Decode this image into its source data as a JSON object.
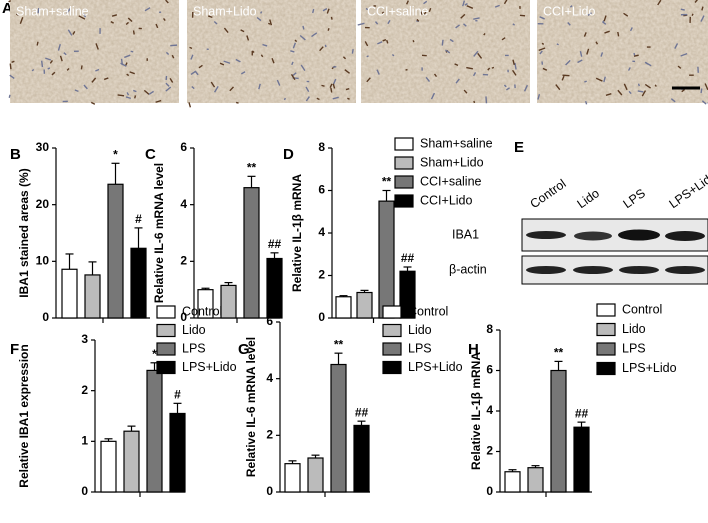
{
  "micrographs": {
    "letter": "A",
    "labels": [
      "Sham+saline",
      "Sham+Lido",
      "CCI+saline",
      "CCI+Lido"
    ]
  },
  "blot": {
    "letter": "E",
    "lanes": [
      "Control",
      "Lido",
      "LPS",
      "LPS+Lido"
    ],
    "rows": [
      "IBA1",
      "β-actin"
    ]
  },
  "chart_data": [
    {
      "type": "bar",
      "panel": "B",
      "y_label": "IBA1 stained areas (%)",
      "categories": [
        null
      ],
      "ylim": [
        0,
        30
      ],
      "yticks": [
        0,
        10,
        20,
        30
      ],
      "series": [
        {
          "color": "#ffffff",
          "values": [
            8.6
          ],
          "errors": [
            2.7
          ]
        },
        {
          "color": "#bbbbbb",
          "values": [
            7.6
          ],
          "errors": [
            2.3
          ]
        },
        {
          "color": "#777777",
          "values": [
            23.6
          ],
          "errors": [
            3.7
          ],
          "annotation": "*"
        },
        {
          "color": "#000000",
          "values": [
            12.3
          ],
          "errors": [
            3.6
          ],
          "annotation": "#"
        }
      ]
    },
    {
      "type": "bar",
      "panel": "C",
      "y_label": "Relative IL-6 mRNA level",
      "categories": [
        null
      ],
      "ylim": [
        0,
        6
      ],
      "yticks": [
        0,
        2,
        4,
        6
      ],
      "series": [
        {
          "color": "#ffffff",
          "values": [
            1.0
          ],
          "errors": [
            0.05
          ]
        },
        {
          "color": "#bbbbbb",
          "values": [
            1.15
          ],
          "errors": [
            0.1
          ]
        },
        {
          "color": "#777777",
          "values": [
            4.6
          ],
          "errors": [
            0.4
          ],
          "annotation": "**"
        },
        {
          "color": "#000000",
          "values": [
            2.1
          ],
          "errors": [
            0.2
          ],
          "annotation": "##"
        }
      ]
    },
    {
      "type": "bar",
      "panel": "D",
      "y_label": "Relative IL-1β mRNA",
      "categories": [
        null
      ],
      "ylim": [
        0,
        8
      ],
      "yticks": [
        0,
        2,
        4,
        6,
        8
      ],
      "series": [
        {
          "name": "Sham+saline",
          "color": "#ffffff",
          "values": [
            1.0
          ],
          "errors": [
            0.05
          ]
        },
        {
          "name": "Sham+Lido",
          "color": "#bbbbbb",
          "values": [
            1.2
          ],
          "errors": [
            0.1
          ]
        },
        {
          "name": "CCI+saline",
          "color": "#777777",
          "values": [
            5.5
          ],
          "errors": [
            0.5
          ],
          "annotation": "**"
        },
        {
          "name": "CCI+Lido",
          "color": "#000000",
          "values": [
            2.2
          ],
          "errors": [
            0.2
          ],
          "annotation": "##"
        }
      ]
    },
    {
      "type": "bar",
      "panel": "F",
      "y_label": "Relative IBA1 expression",
      "categories": [
        null
      ],
      "ylim": [
        0,
        3
      ],
      "yticks": [
        0,
        1,
        2,
        3
      ],
      "series": [
        {
          "name": "Control",
          "color": "#ffffff",
          "values": [
            1.0
          ],
          "errors": [
            0.05
          ]
        },
        {
          "name": "Lido",
          "color": "#bbbbbb",
          "values": [
            1.2
          ],
          "errors": [
            0.1
          ]
        },
        {
          "name": "LPS",
          "color": "#777777",
          "values": [
            2.4
          ],
          "errors": [
            0.15
          ],
          "annotation": "*"
        },
        {
          "name": "LPS+Lido",
          "color": "#000000",
          "values": [
            1.55
          ],
          "errors": [
            0.2
          ],
          "annotation": "#"
        }
      ]
    },
    {
      "type": "bar",
      "panel": "G",
      "y_label": "Relative IL-6 mRNA level",
      "categories": [
        null
      ],
      "ylim": [
        0,
        6
      ],
      "yticks": [
        0,
        2,
        4,
        6
      ],
      "series": [
        {
          "name": "Control",
          "color": "#ffffff",
          "values": [
            1.0
          ],
          "errors": [
            0.1
          ]
        },
        {
          "name": "Lido",
          "color": "#bbbbbb",
          "values": [
            1.2
          ],
          "errors": [
            0.1
          ]
        },
        {
          "name": "LPS",
          "color": "#777777",
          "values": [
            4.5
          ],
          "errors": [
            0.4
          ],
          "annotation": "**"
        },
        {
          "name": "LPS+Lido",
          "color": "#000000",
          "values": [
            2.35
          ],
          "errors": [
            0.15
          ],
          "annotation": "##"
        }
      ]
    },
    {
      "type": "bar",
      "panel": "H",
      "y_label": "Relative IL-1β mRNA",
      "categories": [
        null
      ],
      "ylim": [
        0,
        8
      ],
      "yticks": [
        0,
        2,
        4,
        6,
        8
      ],
      "series": [
        {
          "name": "Control",
          "color": "#ffffff",
          "values": [
            1.0
          ],
          "errors": [
            0.1
          ]
        },
        {
          "name": "Lido",
          "color": "#bbbbbb",
          "values": [
            1.2
          ],
          "errors": [
            0.1
          ]
        },
        {
          "name": "LPS",
          "color": "#777777",
          "values": [
            6.0
          ],
          "errors": [
            0.45
          ],
          "annotation": "**"
        },
        {
          "name": "LPS+Lido",
          "color": "#000000",
          "values": [
            3.2
          ],
          "errors": [
            0.25
          ],
          "annotation": "##"
        }
      ]
    }
  ]
}
